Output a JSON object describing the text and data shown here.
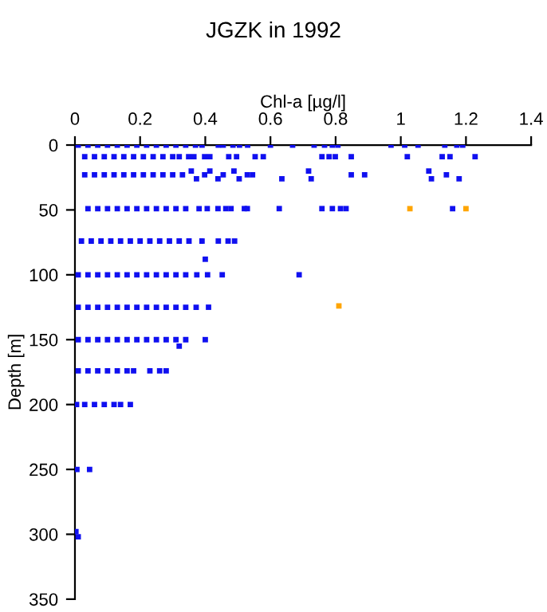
{
  "chart_data": {
    "type": "scatter",
    "title": "JGZK in 1992",
    "xlabel": "Chl-a [µg/l]",
    "ylabel": "Depth [m]",
    "xlim": [
      0,
      1.4
    ],
    "xticks": [
      0,
      0.2,
      0.4,
      0.6,
      0.8,
      1,
      1.2,
      1.4
    ],
    "ylim": [
      350,
      0
    ],
    "yticks": [
      0,
      50,
      100,
      150,
      200,
      250,
      300,
      350
    ],
    "grid": false,
    "marker": "square",
    "series": [
      {
        "color": "#1010f0",
        "x": [
          0.01,
          0.04,
          0.07,
          0.1,
          0.13,
          0.16,
          0.19,
          0.22,
          0.25,
          0.28,
          0.31,
          0.34,
          0.37,
          0.39,
          0.44,
          0.455,
          0.485,
          0.505,
          0.53,
          0.6,
          0.668,
          0.734,
          0.766,
          0.79,
          0.807,
          0.97,
          1.012,
          1.053,
          1.135,
          1.172,
          1.19,
          0.03,
          0.06,
          0.09,
          0.12,
          0.15,
          0.18,
          0.21,
          0.24,
          0.27,
          0.3,
          0.32,
          0.349,
          0.365,
          0.398,
          0.414,
          0.472,
          0.496,
          0.553,
          0.578,
          0.758,
          0.78,
          0.799,
          0.848,
          1.02,
          1.127,
          1.151,
          1.228,
          0.03,
          0.06,
          0.09,
          0.12,
          0.15,
          0.18,
          0.21,
          0.24,
          0.27,
          0.3,
          0.33,
          0.357,
          0.373,
          0.398,
          0.414,
          0.439,
          0.455,
          0.488,
          0.504,
          0.529,
          0.545,
          0.635,
          0.717,
          0.725,
          0.848,
          0.889,
          1.086,
          1.094,
          1.14,
          1.179,
          0.04,
          0.07,
          0.1,
          0.13,
          0.16,
          0.19,
          0.22,
          0.25,
          0.28,
          0.31,
          0.34,
          0.381,
          0.406,
          0.439,
          0.463,
          0.479,
          0.52,
          0.529,
          0.627,
          0.758,
          0.79,
          0.815,
          0.832,
          1.159,
          0.02,
          0.05,
          0.08,
          0.11,
          0.14,
          0.17,
          0.2,
          0.23,
          0.26,
          0.29,
          0.32,
          0.35,
          0.39,
          0.44,
          0.47,
          0.49,
          0.4,
          0.01,
          0.04,
          0.07,
          0.1,
          0.13,
          0.16,
          0.19,
          0.22,
          0.25,
          0.28,
          0.31,
          0.34,
          0.374,
          0.407,
          0.452,
          0.688,
          0.01,
          0.04,
          0.07,
          0.1,
          0.13,
          0.16,
          0.19,
          0.22,
          0.25,
          0.28,
          0.31,
          0.34,
          0.372,
          0.41,
          0.01,
          0.04,
          0.07,
          0.1,
          0.13,
          0.16,
          0.19,
          0.22,
          0.25,
          0.28,
          0.31,
          0.34,
          0.4,
          0.32,
          0.01,
          0.04,
          0.07,
          0.1,
          0.13,
          0.16,
          0.18,
          0.23,
          0.26,
          0.28,
          0.005,
          0.03,
          0.06,
          0.09,
          0.12,
          0.14,
          0.17,
          0.006,
          0.045,
          0.003,
          0.01
        ],
        "values": [
          0,
          0,
          0,
          0,
          0,
          0,
          0,
          0,
          0,
          0,
          0,
          0,
          0,
          0,
          0,
          0,
          0,
          0,
          0,
          0,
          0,
          0,
          0,
          0,
          0,
          0,
          0,
          0,
          0,
          0,
          0,
          9,
          9,
          9,
          9,
          9,
          9,
          9,
          9,
          9,
          9,
          9,
          9,
          9,
          9,
          9,
          9,
          9,
          9,
          9,
          9,
          9,
          9,
          9,
          9,
          9,
          9,
          9,
          23,
          23,
          23,
          23,
          23,
          23,
          23,
          23,
          23,
          23,
          23,
          20,
          26,
          23,
          20,
          26,
          23,
          20,
          26,
          23,
          23,
          26,
          20,
          26,
          23,
          23,
          20,
          26,
          23,
          26,
          49,
          49,
          49,
          49,
          49,
          49,
          49,
          49,
          49,
          49,
          49,
          49,
          49,
          49,
          49,
          49,
          49,
          49,
          49,
          49,
          49,
          49,
          49,
          49,
          74,
          74,
          74,
          74,
          74,
          74,
          74,
          74,
          74,
          74,
          74,
          74,
          74,
          74,
          74,
          74,
          88,
          100,
          100,
          100,
          100,
          100,
          100,
          100,
          100,
          100,
          100,
          100,
          100,
          100,
          100,
          100,
          100,
          125,
          125,
          125,
          125,
          125,
          125,
          125,
          125,
          125,
          125,
          125,
          125,
          125,
          125,
          150,
          150,
          150,
          150,
          150,
          150,
          150,
          150,
          150,
          150,
          150,
          150,
          150,
          155,
          174,
          174,
          174,
          174,
          174,
          174,
          174,
          174,
          174,
          174,
          200,
          200,
          200,
          200,
          200,
          200,
          200,
          250,
          250,
          298,
          302
        ]
      },
      {
        "color": "#ffa500",
        "x": [
          1.028,
          1.2,
          0.81
        ],
        "values": [
          49,
          49,
          124
        ]
      }
    ]
  }
}
